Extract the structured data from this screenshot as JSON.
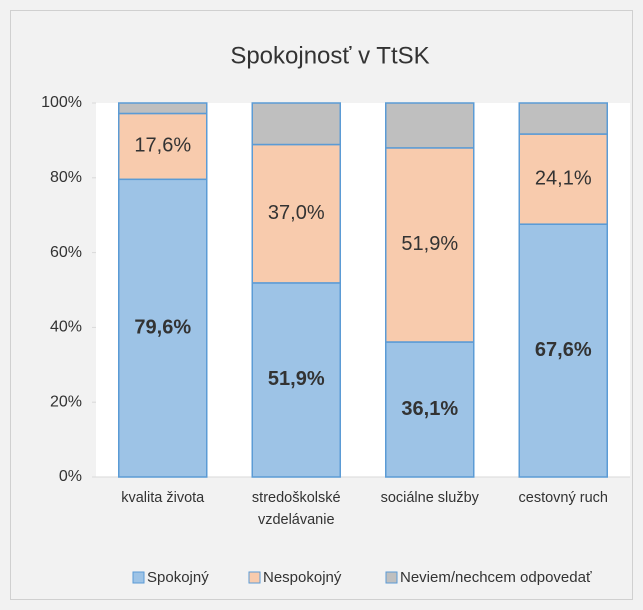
{
  "chart_data": {
    "type": "stacked_bar",
    "title": "Spokojnosť v TtSK",
    "categories": [
      "kvalita života",
      "stredoškolské vzdelávanie",
      "sociálne služby",
      "cestovný ruch"
    ],
    "series": [
      {
        "name": "Spokojný",
        "color": "#9dc3e6",
        "values": [
          79.6,
          51.9,
          36.1,
          67.6
        ],
        "value_labels": [
          "79,6%",
          "51,9%",
          "36,1%",
          "67,6%"
        ]
      },
      {
        "name": "Nespokojný",
        "color": "#f8cbad",
        "values": [
          17.6,
          37.0,
          51.9,
          24.1
        ],
        "value_labels": [
          "17,6%",
          "37,0%",
          "51,9%",
          "24,1%"
        ]
      },
      {
        "name": "Neviem/nechcem odpovedať",
        "color": "#bfbfbf",
        "values": [
          2.8,
          11.1,
          12.0,
          8.3
        ]
      }
    ],
    "ylim": [
      0,
      100
    ],
    "yticks": [
      {
        "value": 0,
        "label": "0%"
      },
      {
        "value": 20,
        "label": "20%"
      },
      {
        "value": 40,
        "label": "40%"
      },
      {
        "value": 60,
        "label": "60%"
      },
      {
        "value": 80,
        "label": "80%"
      },
      {
        "value": 100,
        "label": "100%"
      }
    ],
    "legend": "bottom"
  }
}
